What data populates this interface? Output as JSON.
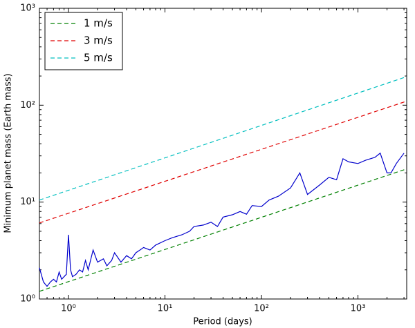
{
  "chart_data": {
    "type": "line",
    "xlabel": "Period (days)",
    "ylabel": "Minimum planet mass (Earth mass)",
    "xscale": "log",
    "yscale": "log",
    "xlim": [
      0.5,
      3200
    ],
    "ylim": [
      1,
      1000
    ],
    "xticks": [
      {
        "value": 1,
        "label": "10⁰"
      },
      {
        "value": 10,
        "label": "10¹"
      },
      {
        "value": 100,
        "label": "10²"
      },
      {
        "value": 1000,
        "label": "10³"
      }
    ],
    "yticks": [
      {
        "value": 1,
        "label": "10⁰"
      },
      {
        "value": 10,
        "label": "10¹"
      },
      {
        "value": 100,
        "label": "10²"
      },
      {
        "value": 1000,
        "label": "10³"
      }
    ],
    "legend": "upper left",
    "series": [
      {
        "name": "1 m/s",
        "color": "#008000",
        "linestyle": "dashed",
        "x": [
          0.5,
          3200
        ],
        "values": [
          1.2,
          22
        ]
      },
      {
        "name": "3 m/s",
        "color": "#e00000",
        "linestyle": "dashed",
        "x": [
          0.5,
          3200
        ],
        "values": [
          6.1,
          110
        ]
      },
      {
        "name": "5 m/s",
        "color": "#00bfbf",
        "linestyle": "dashed",
        "x": [
          0.5,
          3200
        ],
        "values": [
          10.5,
          197
        ]
      },
      {
        "color": "#0000cc",
        "linestyle": "solid",
        "x": [
          0.5,
          0.55,
          0.6,
          0.65,
          0.7,
          0.75,
          0.8,
          0.85,
          0.9,
          0.95,
          1.0,
          1.05,
          1.1,
          1.2,
          1.3,
          1.4,
          1.5,
          1.6,
          1.8,
          2.0,
          2.3,
          2.5,
          2.8,
          3.0,
          3.5,
          4.0,
          4.5,
          5.0,
          5.5,
          6,
          7,
          8,
          10,
          12,
          15,
          18,
          20,
          25,
          30,
          35,
          40,
          50,
          60,
          70,
          80,
          100,
          120,
          150,
          200,
          250,
          300,
          400,
          500,
          600,
          700,
          800,
          1000,
          1200,
          1500,
          1700,
          2000,
          2200,
          2500,
          3000
        ],
        "values": [
          2.1,
          1.5,
          1.35,
          1.5,
          1.6,
          1.5,
          1.9,
          1.6,
          1.7,
          1.8,
          4.6,
          2.0,
          1.7,
          1.8,
          2.0,
          1.9,
          2.5,
          2.0,
          3.2,
          2.4,
          2.6,
          2.2,
          2.5,
          3.0,
          2.4,
          2.8,
          2.6,
          3.0,
          3.2,
          3.4,
          3.2,
          3.6,
          4.0,
          4.3,
          4.6,
          5.0,
          5.6,
          5.8,
          6.2,
          5.6,
          7.0,
          7.4,
          8.0,
          7.5,
          9.2,
          9.0,
          10.5,
          11.5,
          14,
          20,
          12,
          15,
          18,
          17,
          28,
          26,
          25,
          27,
          29,
          32,
          20,
          20,
          25,
          32
        ]
      }
    ]
  }
}
